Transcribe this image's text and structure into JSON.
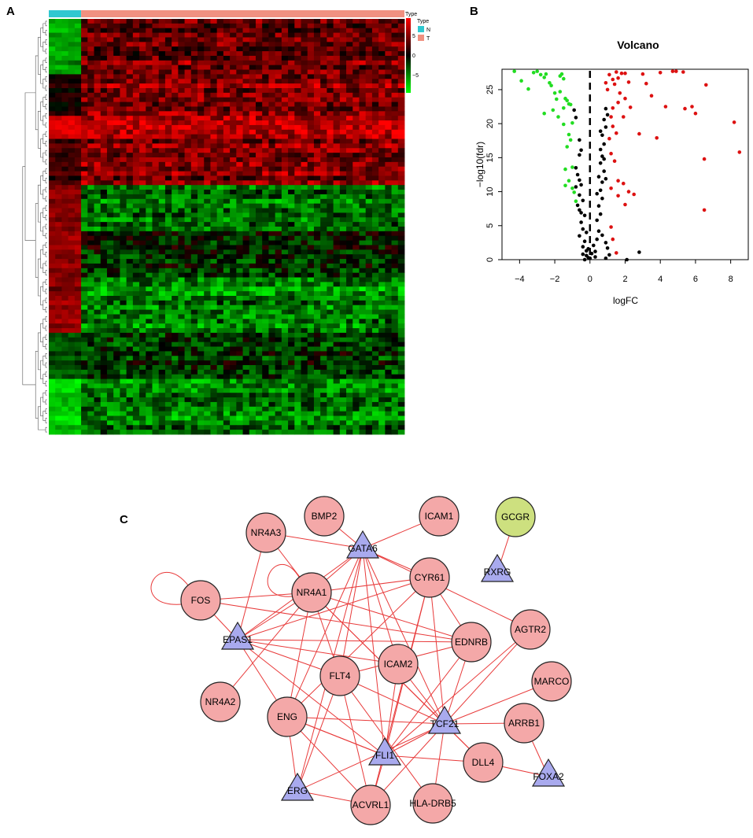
{
  "panels": {
    "a": "A",
    "b": "B",
    "c": "C"
  },
  "heatmap": {
    "legend_title": "Type",
    "type_legend_title": "Type",
    "scale_ticks": [
      "5",
      "0",
      "−5"
    ],
    "groups": [
      {
        "label": "N",
        "color": "#30c8d0",
        "n_samples": 5
      },
      {
        "label": "T",
        "color": "#f09080",
        "n_samples": 50
      }
    ],
    "colors": {
      "high": "#ff0000",
      "mid": "#000000",
      "low": "#00ff00"
    },
    "row_blocks": [
      {
        "rows": 12,
        "normal": -0.6,
        "tumor": 0.45
      },
      {
        "rows": 9,
        "normal": 0.15,
        "tumor": 0.55
      },
      {
        "rows": 5,
        "normal": 0.85,
        "tumor": 0.7
      },
      {
        "rows": 10,
        "normal": 0.25,
        "tumor": 0.5
      },
      {
        "rows": 10,
        "normal": 0.5,
        "tumor": -0.45
      },
      {
        "rows": 10,
        "normal": 0.55,
        "tumor": -0.15
      },
      {
        "rows": 12,
        "normal": 0.55,
        "tumor": -0.5
      },
      {
        "rows": 10,
        "normal": -0.3,
        "tumor": -0.2
      },
      {
        "rows": 12,
        "normal": -0.8,
        "tumor": -0.45
      }
    ]
  },
  "chart_data": {
    "type": "scatter",
    "title": "Volcano",
    "xlabel": "logFC",
    "ylabel": "−log10(fdr)",
    "xlim": [
      -5,
      9
    ],
    "ylim": [
      0,
      28
    ],
    "xticks": [
      "−4",
      "−2",
      "0",
      "2",
      "4",
      "6",
      "8"
    ],
    "yticks": [
      "0",
      "5",
      "10",
      "15",
      "20",
      "25"
    ],
    "threshold_line_x": 0,
    "series": [
      {
        "color": "#22dd22",
        "points": [
          [
            -4.3,
            27.7
          ],
          [
            -3.9,
            26.3
          ],
          [
            -3.5,
            25.1
          ],
          [
            -3.2,
            27.5
          ],
          [
            -3.0,
            27.7
          ],
          [
            -2.8,
            27.2
          ],
          [
            -2.6,
            26.8
          ],
          [
            -2.5,
            27.3
          ],
          [
            -2.3,
            26.0
          ],
          [
            -2.0,
            24.5
          ],
          [
            -1.9,
            23.6
          ],
          [
            -1.7,
            24.7
          ],
          [
            -1.6,
            27.3
          ],
          [
            -1.5,
            26.6
          ],
          [
            -1.4,
            23.7
          ],
          [
            -1.3,
            23.4
          ],
          [
            -1.2,
            22.9
          ],
          [
            -1.1,
            22.8
          ],
          [
            -1.5,
            22.3
          ],
          [
            -2.1,
            22.0
          ],
          [
            -2.6,
            21.5
          ],
          [
            -1.8,
            21.0
          ],
          [
            -1.5,
            19.9
          ],
          [
            -1.2,
            18.4
          ],
          [
            -1.1,
            17.6
          ],
          [
            -1.3,
            16.6
          ],
          [
            -1.4,
            13.3
          ],
          [
            -1.0,
            13.6
          ],
          [
            -1.2,
            11.6
          ],
          [
            -1.0,
            10.5
          ],
          [
            -0.9,
            9.9
          ],
          [
            -0.8,
            8.6
          ],
          [
            -1.7,
            27.0
          ],
          [
            -2.2,
            25.6
          ],
          [
            -1.0,
            20.1
          ],
          [
            -1.4,
            10.9
          ]
        ]
      },
      {
        "color": "#000000",
        "points": [
          [
            -0.9,
            22.0
          ],
          [
            -0.8,
            20.9
          ],
          [
            -0.6,
            17.6
          ],
          [
            -0.5,
            16.1
          ],
          [
            -0.6,
            15.4
          ],
          [
            -0.8,
            13.5
          ],
          [
            -0.7,
            12.5
          ],
          [
            -0.6,
            11.7
          ],
          [
            -0.5,
            11.0
          ],
          [
            -0.8,
            10.7
          ],
          [
            -0.6,
            9.5
          ],
          [
            -0.4,
            8.7
          ],
          [
            -0.7,
            8.0
          ],
          [
            -0.6,
            7.3
          ],
          [
            -0.3,
            6.5
          ],
          [
            -0.5,
            5.5
          ],
          [
            -0.4,
            4.5
          ],
          [
            -0.6,
            3.5
          ],
          [
            -0.3,
            2.7
          ],
          [
            -0.4,
            1.9
          ],
          [
            -0.2,
            1.3
          ],
          [
            -0.4,
            0.8
          ],
          [
            -0.1,
            0.3
          ],
          [
            -0.3,
            0.0
          ],
          [
            -0.5,
            6.9
          ],
          [
            -0.2,
            4.0
          ],
          [
            -0.1,
            1.6
          ],
          [
            -0.2,
            0.6
          ],
          [
            0.0,
            0.2
          ],
          [
            0.1,
            0.9
          ],
          [
            0.2,
            2.1
          ],
          [
            0.3,
            1.2
          ],
          [
            0.3,
            0.4
          ],
          [
            0.4,
            3.0
          ],
          [
            0.5,
            4.2
          ],
          [
            0.4,
            5.8
          ],
          [
            0.6,
            6.7
          ],
          [
            0.5,
            7.9
          ],
          [
            0.7,
            9.0
          ],
          [
            0.6,
            10.2
          ],
          [
            0.7,
            11.4
          ],
          [
            0.5,
            12.2
          ],
          [
            0.8,
            13.0
          ],
          [
            0.6,
            14.2
          ],
          [
            0.7,
            15.2
          ],
          [
            0.6,
            16.2
          ],
          [
            0.8,
            17.0
          ],
          [
            0.7,
            18.3
          ],
          [
            0.9,
            19.5
          ],
          [
            0.8,
            20.6
          ],
          [
            1.0,
            21.3
          ],
          [
            0.9,
            22.2
          ],
          [
            0.8,
            14.8
          ],
          [
            0.9,
            11.9
          ],
          [
            0.7,
            3.6
          ],
          [
            0.9,
            2.5
          ],
          [
            1.0,
            1.7
          ],
          [
            1.1,
            0.7
          ],
          [
            0.9,
            0.2
          ],
          [
            2.1,
            0.0
          ],
          [
            2.8,
            1.1
          ],
          [
            0.4,
            9.7
          ],
          [
            0.6,
            18.9
          ]
        ]
      },
      {
        "color": "#dd1111",
        "points": [
          [
            0.9,
            26.0
          ],
          [
            1.0,
            25.0
          ],
          [
            1.1,
            27.2
          ],
          [
            1.3,
            26.5
          ],
          [
            1.4,
            25.8
          ],
          [
            1.5,
            27.6
          ],
          [
            1.6,
            26.7
          ],
          [
            1.7,
            24.5
          ],
          [
            1.8,
            27.4
          ],
          [
            2.0,
            27.4
          ],
          [
            2.2,
            26.1
          ],
          [
            2.0,
            23.7
          ],
          [
            1.6,
            23.1
          ],
          [
            1.3,
            22.3
          ],
          [
            1.2,
            21.0
          ],
          [
            1.3,
            19.6
          ],
          [
            1.5,
            18.6
          ],
          [
            1.1,
            17.8
          ],
          [
            1.2,
            15.6
          ],
          [
            1.4,
            14.5
          ],
          [
            1.6,
            11.6
          ],
          [
            1.9,
            11.2
          ],
          [
            1.2,
            10.5
          ],
          [
            1.6,
            9.4
          ],
          [
            2.0,
            8.1
          ],
          [
            2.2,
            10.0
          ],
          [
            2.5,
            9.6
          ],
          [
            1.2,
            4.8
          ],
          [
            1.3,
            3.0
          ],
          [
            1.5,
            1.0
          ],
          [
            2.8,
            18.5
          ],
          [
            3.0,
            27.3
          ],
          [
            3.2,
            25.9
          ],
          [
            3.5,
            24.1
          ],
          [
            3.8,
            17.9
          ],
          [
            4.0,
            27.5
          ],
          [
            4.3,
            22.5
          ],
          [
            4.7,
            27.7
          ],
          [
            4.9,
            27.7
          ],
          [
            5.3,
            27.6
          ],
          [
            5.4,
            22.2
          ],
          [
            5.8,
            22.5
          ],
          [
            6.0,
            21.5
          ],
          [
            6.6,
            25.7
          ],
          [
            6.5,
            14.8
          ],
          [
            6.5,
            7.3
          ],
          [
            8.2,
            20.2
          ],
          [
            8.5,
            15.8
          ],
          [
            1.9,
            21.0
          ],
          [
            2.3,
            22.4
          ]
        ]
      }
    ]
  },
  "network": {
    "node_color": "#f4a8a8",
    "triangle_color": "#a9aaee",
    "special_color": "#cde07f",
    "edge_color": "#e83a3a",
    "nodes": [
      {
        "id": "BMP2",
        "label": "BMP2",
        "shape": "circle"
      },
      {
        "id": "ICAM1",
        "label": "ICAM1",
        "shape": "circle"
      },
      {
        "id": "GCGR",
        "label": "GCGR",
        "shape": "circle",
        "special": true
      },
      {
        "id": "NR4A3",
        "label": "NR4A3",
        "shape": "circle"
      },
      {
        "id": "GATA6",
        "label": "GATA6",
        "shape": "triangle"
      },
      {
        "id": "RXRG",
        "label": "RXRG",
        "shape": "triangle"
      },
      {
        "id": "FOS",
        "label": "FOS",
        "shape": "circle"
      },
      {
        "id": "NR4A1",
        "label": "NR4A1",
        "shape": "circle"
      },
      {
        "id": "CYR61",
        "label": "CYR61",
        "shape": "circle"
      },
      {
        "id": "AGTR2",
        "label": "AGTR2",
        "shape": "circle"
      },
      {
        "id": "EPAS1",
        "label": "EPAS1",
        "shape": "triangle"
      },
      {
        "id": "EDNRB",
        "label": "EDNRB",
        "shape": "circle"
      },
      {
        "id": "ICAM2",
        "label": "ICAM2",
        "shape": "circle"
      },
      {
        "id": "FLT4",
        "label": "FLT4",
        "shape": "circle"
      },
      {
        "id": "MARCO",
        "label": "MARCO",
        "shape": "circle"
      },
      {
        "id": "NR4A2",
        "label": "NR4A2",
        "shape": "circle"
      },
      {
        "id": "ENG",
        "label": "ENG",
        "shape": "circle"
      },
      {
        "id": "TCF21",
        "label": "TCF21",
        "shape": "triangle"
      },
      {
        "id": "ARRB1",
        "label": "ARRB1",
        "shape": "circle"
      },
      {
        "id": "FLI1",
        "label": "FLI1",
        "shape": "triangle"
      },
      {
        "id": "DLL4",
        "label": "DLL4",
        "shape": "circle"
      },
      {
        "id": "FOXA2",
        "label": "FOXA2",
        "shape": "triangle"
      },
      {
        "id": "ERG",
        "label": "ERG",
        "shape": "triangle"
      },
      {
        "id": "ACVRL1",
        "label": "ACVRL1",
        "shape": "circle"
      },
      {
        "id": "HLA-DRB5",
        "label": "HLA-DRB5",
        "shape": "circle"
      }
    ],
    "edges": [
      [
        "BMP2",
        "GATA6"
      ],
      [
        "ICAM1",
        "GATA6"
      ],
      [
        "GCGR",
        "RXRG"
      ],
      [
        "NR4A3",
        "GATA6"
      ],
      [
        "NR4A3",
        "EPAS1"
      ],
      [
        "NR4A3",
        "NR4A1"
      ],
      [
        "FOS",
        "FOS"
      ],
      [
        "NR4A1",
        "NR4A1"
      ],
      [
        "FOS",
        "EPAS1"
      ],
      [
        "FOS",
        "NR4A1"
      ],
      [
        "FOS",
        "EDNRB"
      ],
      [
        "GATA6",
        "NR4A1"
      ],
      [
        "GATA6",
        "CYR61"
      ],
      [
        "GATA6",
        "AGTR2"
      ],
      [
        "GATA6",
        "EPAS1"
      ],
      [
        "GATA6",
        "ICAM2"
      ],
      [
        "GATA6",
        "FLT4"
      ],
      [
        "GATA6",
        "ENG"
      ],
      [
        "GATA6",
        "TCF21"
      ],
      [
        "GATA6",
        "FLI1"
      ],
      [
        "GATA6",
        "ERG"
      ],
      [
        "NR4A1",
        "CYR61"
      ],
      [
        "NR4A1",
        "EPAS1"
      ],
      [
        "NR4A1",
        "EDNRB"
      ],
      [
        "NR4A1",
        "FLT4"
      ],
      [
        "NR4A1",
        "TCF21"
      ],
      [
        "NR4A1",
        "ENG"
      ],
      [
        "NR4A1",
        "NR4A2"
      ],
      [
        "NR4A1",
        "DLL4"
      ],
      [
        "CYR61",
        "EPAS1"
      ],
      [
        "CYR61",
        "EDNRB"
      ],
      [
        "CYR61",
        "TCF21"
      ],
      [
        "CYR61",
        "FLI1"
      ],
      [
        "CYR61",
        "ENG"
      ],
      [
        "CYR61",
        "ACVRL1"
      ],
      [
        "EPAS1",
        "EDNRB"
      ],
      [
        "EPAS1",
        "ENG"
      ],
      [
        "EPAS1",
        "FLI1"
      ],
      [
        "EPAS1",
        "ICAM2"
      ],
      [
        "EPAS1",
        "FLT4"
      ],
      [
        "AGTR2",
        "TCF21"
      ],
      [
        "AGTR2",
        "FLI1"
      ],
      [
        "EDNRB",
        "TCF21"
      ],
      [
        "EDNRB",
        "FLI1"
      ],
      [
        "EDNRB",
        "FLT4"
      ],
      [
        "ICAM2",
        "TCF21"
      ],
      [
        "ICAM2",
        "FLI1"
      ],
      [
        "FLT4",
        "ACVRL1"
      ],
      [
        "FLT4",
        "TCF21"
      ],
      [
        "FLT4",
        "ERG"
      ],
      [
        "FLT4",
        "HLA-DRB5"
      ],
      [
        "MARCO",
        "TCF21"
      ],
      [
        "ENG",
        "TCF21"
      ],
      [
        "ENG",
        "FLI1"
      ],
      [
        "ENG",
        "ERG"
      ],
      [
        "ENG",
        "ACVRL1"
      ],
      [
        "TCF21",
        "ARRB1"
      ],
      [
        "TCF21",
        "DLL4"
      ],
      [
        "TCF21",
        "FLI1"
      ],
      [
        "TCF21",
        "ACVRL1"
      ],
      [
        "TCF21",
        "HLA-DRB5"
      ],
      [
        "ARRB1",
        "FOXA2"
      ],
      [
        "FLI1",
        "DLL4"
      ],
      [
        "FLI1",
        "ACVRL1"
      ],
      [
        "DLL4",
        "FOXA2"
      ],
      [
        "ERG",
        "ACVRL1"
      ],
      [
        "TCF21",
        "ERG"
      ],
      [
        "FLI1",
        "ENG"
      ]
    ]
  }
}
